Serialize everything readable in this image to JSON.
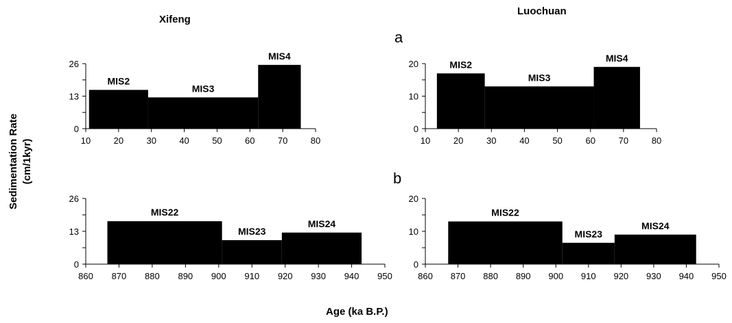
{
  "figure": {
    "titles": [
      "Xifeng",
      "Luochuan"
    ],
    "panel_labels": [
      "a",
      "b"
    ],
    "ylabel_line1": "Sedimentation Rate",
    "ylabel_line2": "(cm/1kyr)",
    "xlabel": "Age (ka B.P.)",
    "bar_color": "#000000"
  },
  "chart_data": [
    {
      "type": "bar",
      "title": "Xifeng",
      "xlim": [
        10,
        80
      ],
      "xticks": [
        10,
        20,
        30,
        40,
        50,
        60,
        70,
        80
      ],
      "ylim": [
        0,
        26
      ],
      "yticks": [
        0,
        13,
        26
      ],
      "segments": [
        {
          "label": "MIS2",
          "x_start": 11,
          "x_end": 29,
          "value": 15.5
        },
        {
          "label": "MIS3",
          "x_start": 29,
          "x_end": 62.5,
          "value": 12.5
        },
        {
          "label": "MIS4",
          "x_start": 62.5,
          "x_end": 75.5,
          "value": 25.5
        }
      ]
    },
    {
      "type": "bar",
      "title": "Luochuan",
      "xlim": [
        10,
        80
      ],
      "xticks": [
        10,
        20,
        30,
        40,
        50,
        60,
        70,
        80
      ],
      "ylim": [
        0,
        20
      ],
      "yticks": [
        0,
        10,
        20
      ],
      "segments": [
        {
          "label": "MIS2",
          "x_start": 13.5,
          "x_end": 28,
          "value": 17
        },
        {
          "label": "MIS3",
          "x_start": 28,
          "x_end": 61,
          "value": 13
        },
        {
          "label": "MIS4",
          "x_start": 61,
          "x_end": 75,
          "value": 19
        }
      ]
    },
    {
      "type": "bar",
      "xlim": [
        860,
        950
      ],
      "xticks": [
        860,
        870,
        880,
        890,
        900,
        910,
        920,
        930,
        940,
        950
      ],
      "ylim": [
        0,
        26
      ],
      "yticks": [
        0,
        13,
        26
      ],
      "segments": [
        {
          "label": "MIS22",
          "x_start": 866.5,
          "x_end": 901,
          "value": 17
        },
        {
          "label": "MIS23",
          "x_start": 901,
          "x_end": 919,
          "value": 9.5
        },
        {
          "label": "MIS24",
          "x_start": 919,
          "x_end": 943,
          "value": 12.5
        }
      ]
    },
    {
      "type": "bar",
      "xlim": [
        860,
        950
      ],
      "xticks": [
        860,
        870,
        880,
        890,
        900,
        910,
        920,
        930,
        940,
        950
      ],
      "ylim": [
        0,
        20
      ],
      "yticks": [
        0,
        10,
        20
      ],
      "segments": [
        {
          "label": "MIS22",
          "x_start": 867,
          "x_end": 902,
          "value": 13
        },
        {
          "label": "MIS23",
          "x_start": 902,
          "x_end": 918,
          "value": 6.5
        },
        {
          "label": "MIS24",
          "x_start": 918,
          "x_end": 943,
          "value": 9
        }
      ]
    }
  ]
}
